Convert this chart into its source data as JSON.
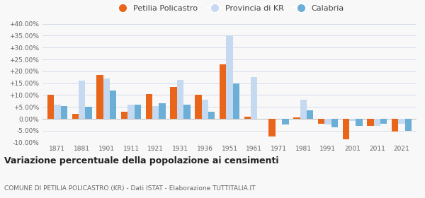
{
  "years": [
    1871,
    1881,
    1901,
    1911,
    1921,
    1931,
    1936,
    1951,
    1961,
    1971,
    1981,
    1991,
    2001,
    2011,
    2021
  ],
  "petilia": [
    10.0,
    2.0,
    18.5,
    3.0,
    10.5,
    13.5,
    10.0,
    23.0,
    1.0,
    -7.5,
    0.5,
    -2.0,
    -8.5,
    -3.0,
    -5.5
  ],
  "provincia_kr": [
    6.0,
    16.0,
    17.0,
    6.0,
    5.5,
    16.5,
    8.0,
    35.0,
    17.5,
    0.0,
    8.0,
    -2.5,
    -1.0,
    -3.0,
    -2.0
  ],
  "calabria": [
    5.5,
    5.0,
    12.0,
    6.0,
    6.5,
    6.0,
    3.0,
    15.0,
    0.0,
    -2.5,
    3.5,
    -3.5,
    -3.0,
    -2.0,
    -5.0
  ],
  "petilia_color": "#e8651a",
  "provincia_color": "#c5d9f0",
  "calabria_color": "#6baed6",
  "title": "Variazione percentuale della popolazione ai censimenti",
  "subtitle": "COMUNE DI PETILIA POLICASTRO (KR) - Dati ISTAT - Elaborazione TUTTITALIA.IT",
  "ylim": [
    -10.0,
    40.0
  ],
  "yticks": [
    -10.0,
    -5.0,
    0.0,
    5.0,
    10.0,
    15.0,
    20.0,
    25.0,
    30.0,
    35.0,
    40.0
  ],
  "legend_labels": [
    "Petilia Policastro",
    "Provincia di KR",
    "Calabria"
  ],
  "background_color": "#f8f8f8",
  "grid_color": "#d0d8e8"
}
